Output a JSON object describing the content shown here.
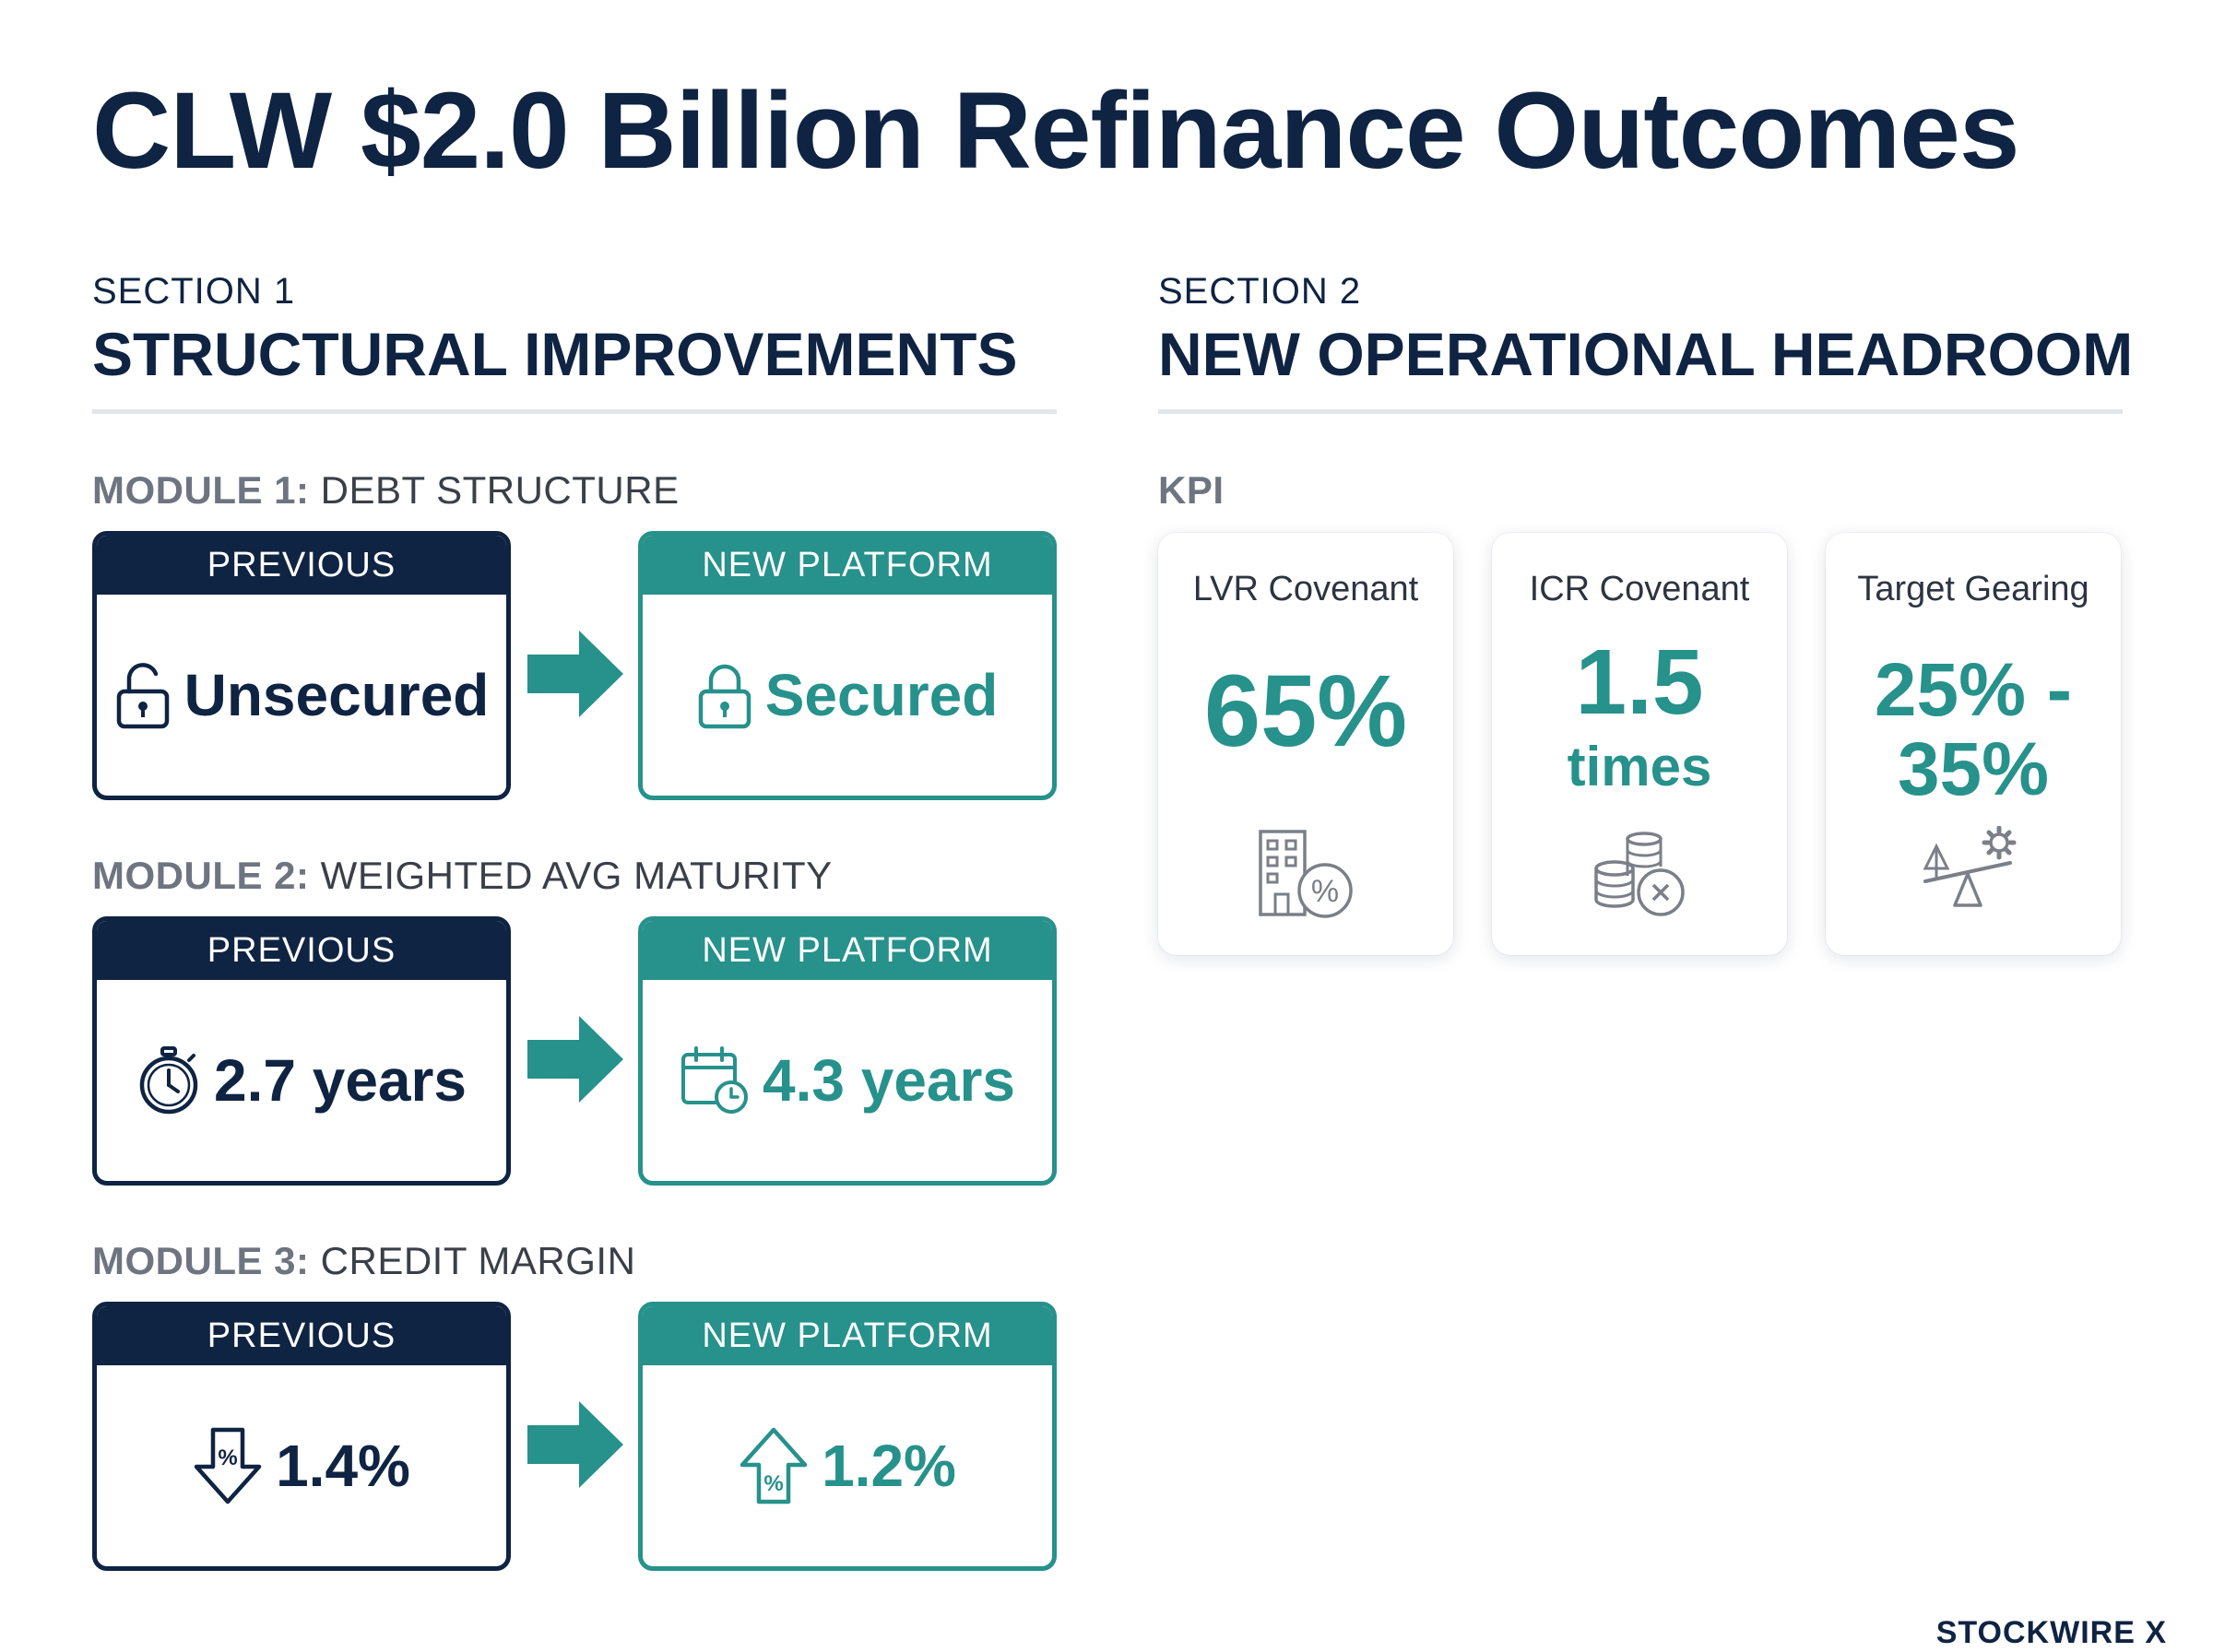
{
  "title": "CLW $2.0 Billion Refinance Outcomes",
  "section1": {
    "label": "SECTION 1",
    "heading": "STRUCTURAL IMPROVEMENTS",
    "modules": [
      {
        "prefix": "MODULE 1:",
        "name": "DEBT STRUCTURE",
        "previous_header": "PREVIOUS",
        "previous_value": "Unsecured",
        "previous_icon": "unlocked-padlock-icon",
        "new_header": "NEW PLATFORM",
        "new_value": "Secured",
        "new_icon": "locked-padlock-icon"
      },
      {
        "prefix": "MODULE 2:",
        "name": "WEIGHTED AVG MATURITY",
        "previous_header": "PREVIOUS",
        "previous_value": "2.7 years",
        "previous_icon": "stopwatch-icon",
        "new_header": "NEW PLATFORM",
        "new_value": "4.3 years",
        "new_icon": "calendar-clock-icon"
      },
      {
        "prefix": "MODULE 3:",
        "name": "CREDIT MARGIN",
        "previous_header": "PREVIOUS",
        "previous_value": "1.4%",
        "previous_icon": "percent-down-arrow-icon",
        "new_header": "NEW PLATFORM",
        "new_value": "1.2%",
        "new_icon": "percent-up-arrow-icon"
      }
    ]
  },
  "section2": {
    "label": "SECTION 2",
    "heading": "NEW OPERATIONAL HEADROOM",
    "kpi_label": "KPI",
    "kpis": [
      {
        "label": "LVR Covenant",
        "value_line1": "65%",
        "value_line2": "",
        "icon": "building-percent-icon"
      },
      {
        "label": "ICR Covenant",
        "value_line1": "1.5",
        "value_line2": "times",
        "icon": "coins-cancel-icon"
      },
      {
        "label": "Target Gearing",
        "value_line1": "25% -",
        "value_line2": "35%",
        "icon": "balance-gear-icon"
      }
    ]
  },
  "colors": {
    "navy": "#0f2342",
    "teal": "#27918b",
    "muted": "#6e7480"
  },
  "brand": "STOCKWIRE X"
}
